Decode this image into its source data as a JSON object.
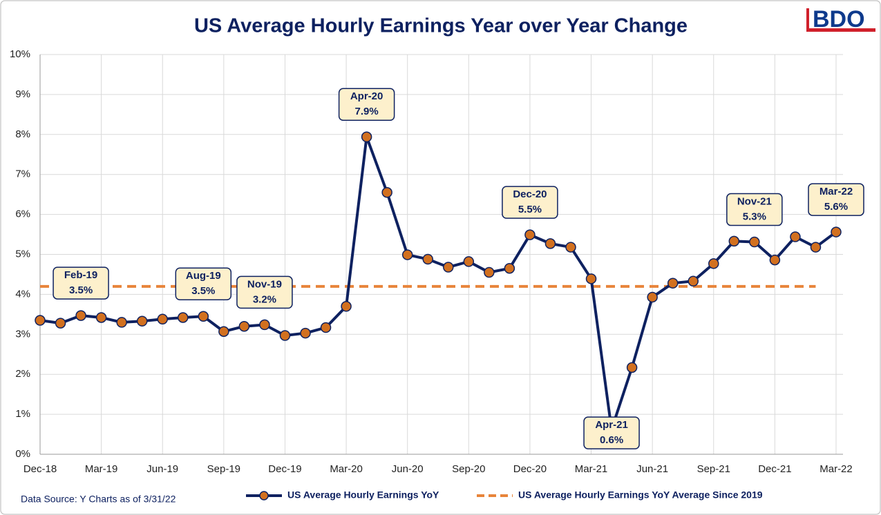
{
  "chart_data": {
    "type": "line",
    "title": "US Average Hourly Earnings Year over Year Change",
    "logo": "BDO",
    "source": "Data Source: Y Charts as of 3/31/22",
    "categories": [
      "Dec-18",
      null,
      null,
      "Mar-19",
      null,
      null,
      "Jun-19",
      null,
      null,
      "Sep-19",
      null,
      null,
      "Dec-19",
      null,
      null,
      "Mar-20",
      null,
      null,
      "Jun-20",
      null,
      null,
      "Sep-20",
      null,
      null,
      "Dec-20",
      null,
      null,
      "Mar-21",
      null,
      null,
      "Jun-21",
      null,
      null,
      "Sep-21",
      null,
      null,
      "Dec-21",
      null,
      null,
      "Mar-22"
    ],
    "ylim": [
      0,
      10
    ],
    "yticks": [
      {
        "value": 0,
        "label": "0%"
      },
      {
        "value": 1,
        "label": "1%"
      },
      {
        "value": 2,
        "label": "2%"
      },
      {
        "value": 3,
        "label": "3%"
      },
      {
        "value": 4,
        "label": "4%"
      },
      {
        "value": 5,
        "label": "5%"
      },
      {
        "value": 6,
        "label": "6%"
      },
      {
        "value": 7,
        "label": "7%"
      },
      {
        "value": 8,
        "label": "8%"
      },
      {
        "value": 9,
        "label": "9%"
      },
      {
        "value": 10,
        "label": "10%"
      }
    ],
    "grid": true,
    "series": [
      {
        "name": "US Average Hourly Earnings YoY",
        "color": "#0e2160",
        "marker_color": "#d2701f",
        "values": [
          3.35,
          3.28,
          3.47,
          3.42,
          3.3,
          3.33,
          3.38,
          3.42,
          3.45,
          3.07,
          3.2,
          3.24,
          2.97,
          3.03,
          3.17,
          3.7,
          7.94,
          6.55,
          4.99,
          4.88,
          4.68,
          4.82,
          4.55,
          4.65,
          5.49,
          5.27,
          5.18,
          4.39,
          0.62,
          2.17,
          3.93,
          4.28,
          4.33,
          4.77,
          5.33,
          5.31,
          4.86,
          5.44,
          5.18,
          5.56
        ],
        "value_labels": [
          null,
          null,
          "3.5%",
          null,
          null,
          null,
          null,
          null,
          "3.5%",
          null,
          null,
          "3.2%",
          null,
          null,
          null,
          null,
          "7.9%",
          null,
          null,
          null,
          null,
          null,
          null,
          null,
          "5.5%",
          null,
          null,
          null,
          "0.6%",
          null,
          null,
          null,
          null,
          null,
          null,
          "5.3%",
          null,
          null,
          null,
          "5.6%"
        ],
        "point_labels": [
          null,
          null,
          "Feb-19",
          null,
          null,
          null,
          null,
          null,
          "Aug-19",
          null,
          null,
          "Nov-19",
          null,
          null,
          null,
          null,
          "Apr-20",
          null,
          null,
          null,
          null,
          null,
          null,
          null,
          "Dec-20",
          null,
          null,
          null,
          "Apr-21",
          null,
          null,
          null,
          null,
          null,
          null,
          "Nov-21",
          null,
          null,
          null,
          "Mar-22"
        ]
      },
      {
        "name": "US Average Hourly Earnings YoY Average Since 2019",
        "color": "#e8843a",
        "dashed": true,
        "values": [
          4.2,
          4.2,
          4.2,
          4.2,
          4.2,
          4.2,
          4.2,
          4.2,
          4.2,
          4.2,
          4.2,
          4.2,
          4.2,
          4.2,
          4.2,
          4.2,
          4.2,
          4.2,
          4.2,
          4.2,
          4.2,
          4.2,
          4.2,
          4.2,
          4.2,
          4.2,
          4.2,
          4.2,
          4.2,
          4.2,
          4.2,
          4.2,
          4.2,
          4.2,
          4.2,
          4.2,
          4.2,
          4.2,
          4.2,
          null
        ]
      }
    ]
  }
}
